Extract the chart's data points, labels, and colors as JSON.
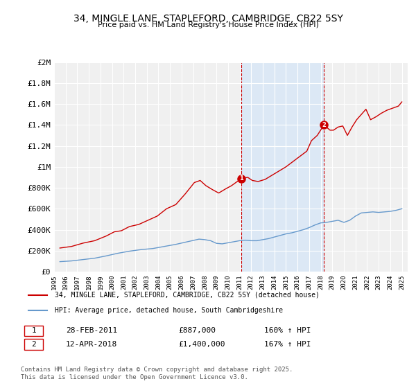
{
  "title": "34, MINGLE LANE, STAPLEFORD, CAMBRIDGE, CB22 5SY",
  "subtitle": "Price paid vs. HM Land Registry's House Price Index (HPI)",
  "bg_color": "#ffffff",
  "plot_bg_color": "#f0f0f0",
  "shaded_region_color": "#dce8f5",
  "red_line_color": "#cc0000",
  "blue_line_color": "#6699cc",
  "marker1_x": 2011.16,
  "marker2_x": 2018.28,
  "marker1_y": 887000,
  "marker2_y": 1400000,
  "marker1_label": "1",
  "marker2_label": "2",
  "annotation1": "28-FEB-2011    £887,000    160% ↑ HPI",
  "annotation2": "12-APR-2018    £1,400,000    167% ↑ HPI",
  "legend1": "34, MINGLE LANE, STAPLEFORD, CAMBRIDGE, CB22 5SY (detached house)",
  "legend2": "HPI: Average price, detached house, South Cambridgeshire",
  "footer": "Contains HM Land Registry data © Crown copyright and database right 2025.\nThis data is licensed under the Open Government Licence v3.0.",
  "ylabel_ticks": [
    "£0",
    "£200K",
    "£400K",
    "£600K",
    "£800K",
    "£1M",
    "£1.2M",
    "£1.4M",
    "£1.6M",
    "£1.8M",
    "£2M"
  ],
  "ytick_values": [
    0,
    200000,
    400000,
    600000,
    800000,
    1000000,
    1200000,
    1400000,
    1600000,
    1800000,
    2000000
  ],
  "xlim": [
    1995,
    2025.5
  ],
  "ylim": [
    0,
    2000000
  ],
  "red_x": [
    1995.5,
    1996.5,
    1997.5,
    1998.5,
    1999.5,
    2000.2,
    2000.8,
    2001.5,
    2002.3,
    2003.1,
    2003.9,
    2004.7,
    2005.5,
    2006.3,
    2007.1,
    2007.6,
    2008.1,
    2008.7,
    2009.2,
    2009.8,
    2010.3,
    2010.8,
    2011.16,
    2011.7,
    2012.1,
    2012.6,
    2013.2,
    2013.8,
    2014.4,
    2015.0,
    2015.6,
    2016.2,
    2016.8,
    2017.2,
    2017.7,
    2018.28,
    2018.8,
    2019.1,
    2019.5,
    2019.9,
    2020.3,
    2020.7,
    2021.1,
    2021.5,
    2021.9,
    2022.3,
    2022.8,
    2023.2,
    2023.7,
    2024.2,
    2024.7,
    2025.0
  ],
  "red_y": [
    225000,
    240000,
    272000,
    295000,
    340000,
    380000,
    390000,
    430000,
    450000,
    490000,
    530000,
    600000,
    640000,
    740000,
    850000,
    870000,
    820000,
    780000,
    750000,
    790000,
    820000,
    860000,
    887000,
    900000,
    870000,
    860000,
    880000,
    920000,
    960000,
    1000000,
    1050000,
    1100000,
    1150000,
    1250000,
    1300000,
    1400000,
    1350000,
    1350000,
    1380000,
    1390000,
    1300000,
    1380000,
    1450000,
    1500000,
    1550000,
    1450000,
    1480000,
    1510000,
    1540000,
    1560000,
    1580000,
    1620000
  ],
  "blue_x": [
    1995.5,
    1996.5,
    1997.5,
    1998.5,
    1999.5,
    2000.5,
    2001.5,
    2002.5,
    2003.5,
    2004.5,
    2005.5,
    2006.5,
    2007.5,
    2008.0,
    2008.5,
    2009.0,
    2009.5,
    2010.0,
    2010.5,
    2011.0,
    2011.5,
    2012.0,
    2012.5,
    2013.0,
    2013.5,
    2014.0,
    2014.5,
    2015.0,
    2015.5,
    2016.0,
    2016.5,
    2017.0,
    2017.5,
    2018.0,
    2018.5,
    2019.0,
    2019.5,
    2020.0,
    2020.5,
    2021.0,
    2021.5,
    2022.0,
    2022.5,
    2023.0,
    2023.5,
    2024.0,
    2024.5,
    2025.0
  ],
  "blue_y": [
    95000,
    102000,
    115000,
    128000,
    150000,
    175000,
    195000,
    210000,
    220000,
    240000,
    260000,
    285000,
    310000,
    305000,
    295000,
    270000,
    265000,
    275000,
    285000,
    295000,
    300000,
    295000,
    295000,
    305000,
    315000,
    330000,
    345000,
    360000,
    370000,
    385000,
    400000,
    420000,
    445000,
    465000,
    470000,
    480000,
    490000,
    470000,
    490000,
    530000,
    560000,
    565000,
    570000,
    565000,
    570000,
    575000,
    585000,
    600000
  ]
}
